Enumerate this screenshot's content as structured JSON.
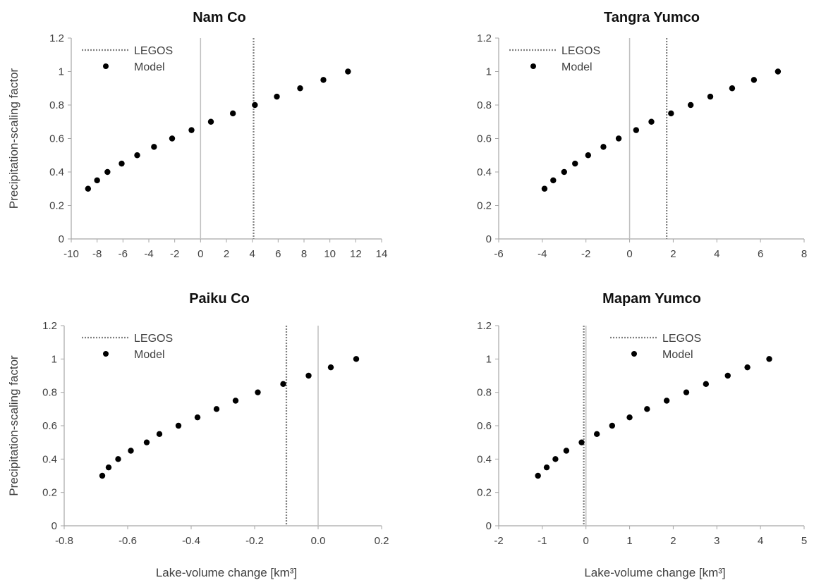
{
  "figure": {
    "ylabel": "Precipitation-scaling factor",
    "xlabel": "Lake-volume change [km³]"
  },
  "chart_data": [
    {
      "type": "scatter",
      "title": "Nam Co",
      "xlim": [
        -10,
        14
      ],
      "ylim": [
        0,
        1.2
      ],
      "xticks": [
        "-10",
        "-8",
        "-6",
        "-4",
        "-2",
        "0",
        "2",
        "4",
        "6",
        "8",
        "10",
        "12",
        "14"
      ],
      "yticks": [
        "0",
        "0.2",
        "0.4",
        "0.6",
        "0.8",
        "1",
        "1.2"
      ],
      "xlabel": "",
      "ylabel": "Precipitation-scaling factor",
      "legend": {
        "position": "top-left",
        "entries": [
          "LEGOS",
          "Model"
        ]
      },
      "legos_x": 4.1,
      "zero_line_x": 0,
      "series": [
        {
          "name": "Model",
          "x": [
            -8.7,
            -8.0,
            -7.2,
            -6.1,
            -4.9,
            -3.6,
            -2.2,
            -0.7,
            0.8,
            2.5,
            4.2,
            5.9,
            7.7,
            9.5,
            11.4
          ],
          "y": [
            0.3,
            0.35,
            0.4,
            0.45,
            0.5,
            0.55,
            0.6,
            0.65,
            0.7,
            0.75,
            0.8,
            0.85,
            0.9,
            0.95,
            1.0
          ]
        }
      ]
    },
    {
      "type": "scatter",
      "title": "Tangra Yumco",
      "xlim": [
        -6,
        8
      ],
      "ylim": [
        0,
        1.2
      ],
      "xticks": [
        "-6",
        "-4",
        "-2",
        "0",
        "2",
        "4",
        "6",
        "8"
      ],
      "yticks": [
        "0",
        "0.2",
        "0.4",
        "0.6",
        "0.8",
        "1",
        "1.2"
      ],
      "xlabel": "",
      "ylabel": "",
      "legend": {
        "position": "top-left",
        "entries": [
          "LEGOS",
          "Model"
        ]
      },
      "legos_x": 1.7,
      "zero_line_x": 0,
      "series": [
        {
          "name": "Model",
          "x": [
            -3.9,
            -3.5,
            -3.0,
            -2.5,
            -1.9,
            -1.2,
            -0.5,
            0.3,
            1.0,
            1.9,
            2.8,
            3.7,
            4.7,
            5.7,
            6.8
          ],
          "y": [
            0.3,
            0.35,
            0.4,
            0.45,
            0.5,
            0.55,
            0.6,
            0.65,
            0.7,
            0.75,
            0.8,
            0.85,
            0.9,
            0.95,
            1.0
          ]
        }
      ]
    },
    {
      "type": "scatter",
      "title": "Paiku Co",
      "xlim": [
        -0.8,
        0.2
      ],
      "ylim": [
        0,
        1.2
      ],
      "xticks": [
        "-0.8",
        "-0.6",
        "-0.4",
        "-0.2",
        "0.0",
        "0.2"
      ],
      "yticks": [
        "0",
        "0.2",
        "0.4",
        "0.6",
        "0.8",
        "1",
        "1.2"
      ],
      "xlabel": "Lake-volume change [km³]",
      "ylabel": "Precipitation-scaling factor",
      "legend": {
        "position": "top-left",
        "entries": [
          "LEGOS",
          "Model"
        ]
      },
      "legos_x": -0.1,
      "zero_line_x": 0,
      "series": [
        {
          "name": "Model",
          "x": [
            -0.68,
            -0.66,
            -0.63,
            -0.59,
            -0.54,
            -0.5,
            -0.44,
            -0.38,
            -0.32,
            -0.26,
            -0.19,
            -0.11,
            -0.03,
            0.04,
            0.12
          ],
          "y": [
            0.3,
            0.35,
            0.4,
            0.45,
            0.5,
            0.55,
            0.6,
            0.65,
            0.7,
            0.75,
            0.8,
            0.85,
            0.9,
            0.95,
            1.0
          ]
        }
      ]
    },
    {
      "type": "scatter",
      "title": "Mapam Yumco",
      "xlim": [
        -2,
        5
      ],
      "ylim": [
        0,
        1.2
      ],
      "xticks": [
        "-2",
        "-1",
        "0",
        "1",
        "2",
        "3",
        "4",
        "5"
      ],
      "yticks": [
        "0",
        "0.2",
        "0.4",
        "0.6",
        "0.8",
        "1",
        "1.2"
      ],
      "xlabel": "Lake-volume change [km³]",
      "ylabel": "",
      "legend": {
        "position": "top-center",
        "entries": [
          "LEGOS",
          "Model"
        ]
      },
      "legos_x": -0.05,
      "zero_line_x": 0,
      "series": [
        {
          "name": "Model",
          "x": [
            -1.1,
            -0.9,
            -0.7,
            -0.45,
            -0.1,
            0.25,
            0.6,
            1.0,
            1.4,
            1.85,
            2.3,
            2.75,
            3.25,
            3.7,
            4.2
          ],
          "y": [
            0.3,
            0.35,
            0.4,
            0.45,
            0.5,
            0.55,
            0.6,
            0.65,
            0.7,
            0.75,
            0.8,
            0.85,
            0.9,
            0.95,
            1.0
          ]
        }
      ]
    }
  ]
}
